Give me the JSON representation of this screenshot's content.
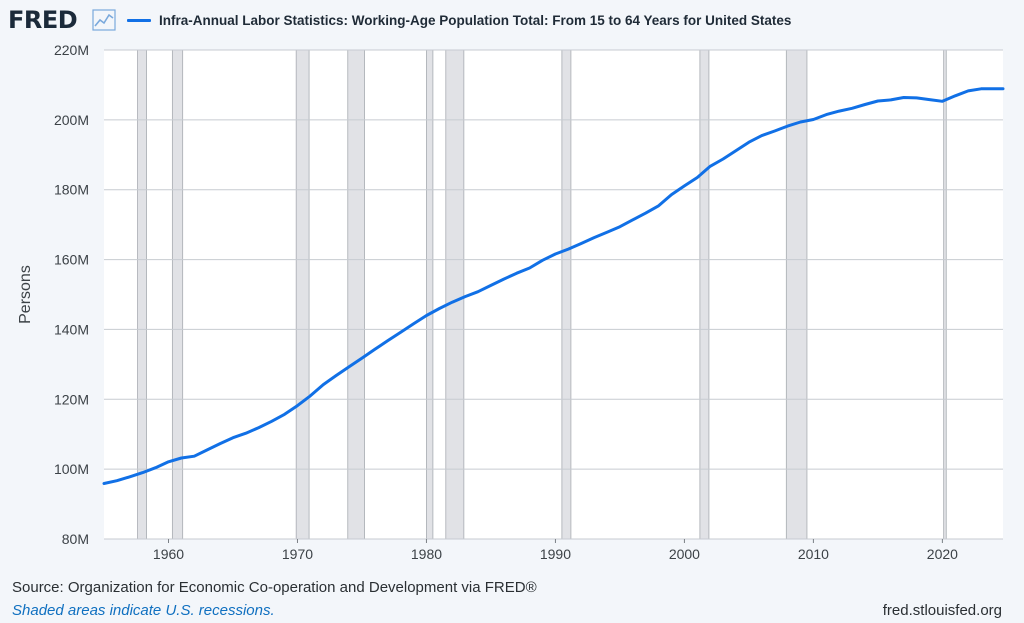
{
  "header": {
    "logo_text": "FRED",
    "logo_icon": "trend-line-icon",
    "legend_label": "Infra-Annual Labor Statistics: Working-Age Population Total: From 15 to 64 Years for United States",
    "series_color": "#1170e6"
  },
  "footer": {
    "source": "Source: Organization for Economic Co-operation and Development via FRED®",
    "note": "Shaded areas indicate U.S. recessions.",
    "url": "fred.stlouisfed.org"
  },
  "chart_data": {
    "type": "line",
    "title": "Infra-Annual Labor Statistics: Working-Age Population Total: From 15 to 64 Years for United States",
    "xlabel": "",
    "ylabel": "Persons",
    "xlim": [
      1955,
      2024.7
    ],
    "ylim": [
      80,
      220
    ],
    "y_unit": "millions of persons",
    "x_ticks": [
      1960,
      1970,
      1980,
      1990,
      2000,
      2010,
      2020
    ],
    "x_tick_labels": [
      "1960",
      "1970",
      "1980",
      "1990",
      "2000",
      "2010",
      "2020"
    ],
    "y_ticks": [
      80,
      100,
      120,
      140,
      160,
      180,
      200,
      220
    ],
    "y_tick_labels": [
      "80M",
      "100M",
      "120M",
      "140M",
      "160M",
      "180M",
      "200M",
      "220M"
    ],
    "grid": true,
    "recessions": [
      [
        1957.6,
        1958.3
      ],
      [
        1960.3,
        1961.1
      ],
      [
        1969.9,
        1970.9
      ],
      [
        1973.9,
        1975.2
      ],
      [
        1980.0,
        1980.5
      ],
      [
        1981.5,
        1982.9
      ],
      [
        1990.5,
        1991.2
      ],
      [
        2001.2,
        2001.9
      ],
      [
        2007.9,
        2009.5
      ],
      [
        2020.1,
        2020.3
      ]
    ],
    "series": [
      {
        "name": "Working-Age Population Total: From 15 to 64 Years for United States",
        "color": "#1170e6",
        "x": [
          1955,
          1956,
          1957,
          1958,
          1959,
          1960,
          1961,
          1962,
          1963,
          1964,
          1965,
          1966,
          1967,
          1968,
          1969,
          1970,
          1971,
          1972,
          1973,
          1974,
          1975,
          1976,
          1977,
          1978,
          1979,
          1980,
          1981,
          1982,
          1983,
          1984,
          1985,
          1986,
          1987,
          1988,
          1989,
          1990,
          1991,
          1992,
          1993,
          1994,
          1995,
          1996,
          1997,
          1998,
          1999,
          2000,
          2001,
          2002,
          2003,
          2004,
          2005,
          2006,
          2007,
          2008,
          2009,
          2010,
          2011,
          2012,
          2013,
          2014,
          2015,
          2016,
          2017,
          2018,
          2019,
          2020,
          2021,
          2022,
          2023,
          2024,
          2024.7
        ],
        "values": [
          95.9,
          96.7,
          97.8,
          99.0,
          100.4,
          102.1,
          103.2,
          103.7,
          105.5,
          107.3,
          109.0,
          110.3,
          111.9,
          113.7,
          115.7,
          118.2,
          121.0,
          124.2,
          126.8,
          129.3,
          131.8,
          134.3,
          136.8,
          139.2,
          141.6,
          144.0,
          146.0,
          147.8,
          149.4,
          150.8,
          152.6,
          154.4,
          156.1,
          157.6,
          159.8,
          161.6,
          163.0,
          164.6,
          166.3,
          167.8,
          169.4,
          171.4,
          173.3,
          175.4,
          178.6,
          181.1,
          183.5,
          186.7,
          188.8,
          191.2,
          193.6,
          195.5,
          196.8,
          198.2,
          199.4,
          200.1,
          201.5,
          202.5,
          203.3,
          204.4,
          205.4,
          205.7,
          206.4,
          206.3,
          205.8,
          205.3,
          206.9,
          208.3,
          208.9,
          208.9,
          208.9
        ]
      }
    ]
  }
}
